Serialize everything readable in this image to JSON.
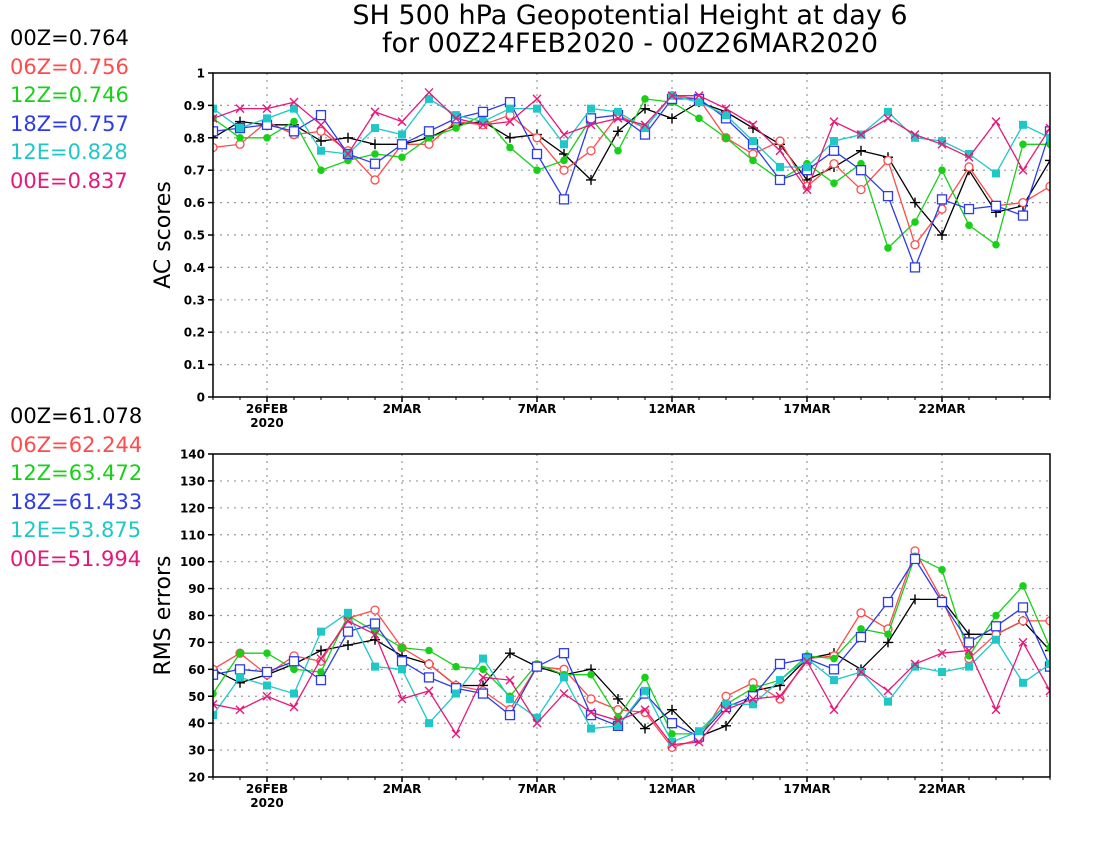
{
  "title": [
    "SH 500 hPa Geopotential Height at day 6",
    "for 00Z24FEB2020 - 00Z26MAR2020"
  ],
  "chart_data": [
    {
      "type": "line",
      "ylabel": "AC scores",
      "ylim": [
        0,
        1
      ],
      "yticks": [
        "0",
        "0.1",
        "0.2",
        "0.3",
        "0.4",
        "0.5",
        "0.6",
        "0.7",
        "0.8",
        "0.9",
        "1"
      ],
      "xlim": [
        24,
        55
      ],
      "xticks": [
        {
          "x": 26,
          "label": "26FEB",
          "sub": "2020"
        },
        {
          "x": 31,
          "label": "2MAR"
        },
        {
          "x": 36,
          "label": "7MAR"
        },
        {
          "x": 41,
          "label": "12MAR"
        },
        {
          "x": 46,
          "label": "17MAR"
        },
        {
          "x": 51,
          "label": "22MAR"
        }
      ],
      "grid": true,
      "legend": [
        {
          "label": "00Z=0.764",
          "color": "#000000"
        },
        {
          "label": "06Z=0.756",
          "color": "#ff4b4b"
        },
        {
          "label": "12Z=0.746",
          "color": "#18d018"
        },
        {
          "label": "18Z=0.757",
          "color": "#2e3ce6"
        },
        {
          "label": "12E=0.828",
          "color": "#1ec8c8"
        },
        {
          "label": "00E=0.837",
          "color": "#e6187a"
        }
      ],
      "series": [
        {
          "key": "00Z",
          "color": "#000000",
          "marker": "plus",
          "x": [
            24,
            25,
            26,
            27,
            28,
            29,
            30,
            31,
            32,
            33,
            34,
            35,
            36,
            37,
            38,
            39,
            40,
            41,
            42,
            43,
            44,
            45,
            46,
            47,
            48,
            49,
            50,
            51,
            52,
            53,
            54,
            55
          ],
          "values": [
            0.8,
            0.85,
            0.84,
            0.84,
            0.79,
            0.8,
            0.78,
            0.78,
            0.8,
            0.84,
            0.85,
            0.8,
            0.81,
            0.75,
            0.67,
            0.82,
            0.89,
            0.86,
            0.91,
            0.88,
            0.83,
            0.78,
            0.67,
            0.71,
            0.76,
            0.74,
            0.6,
            0.5,
            0.7,
            0.57,
            0.59,
            0.73
          ]
        },
        {
          "key": "06Z",
          "color": "#ff4b4b",
          "marker": "circle",
          "x": [
            24,
            25,
            26,
            27,
            28,
            29,
            30,
            31,
            32,
            33,
            34,
            35,
            36,
            37,
            38,
            39,
            40,
            41,
            42,
            43,
            44,
            45,
            46,
            47,
            48,
            49,
            50,
            51,
            52,
            53,
            54,
            55
          ],
          "values": [
            0.77,
            0.78,
            0.85,
            0.81,
            0.82,
            0.76,
            0.67,
            0.78,
            0.78,
            0.85,
            0.84,
            0.87,
            0.8,
            0.7,
            0.76,
            0.87,
            0.83,
            0.93,
            0.92,
            0.8,
            0.75,
            0.79,
            0.65,
            0.72,
            0.64,
            0.73,
            0.47,
            0.58,
            0.71,
            0.59,
            0.6,
            0.65
          ]
        },
        {
          "key": "12Z",
          "color": "#18d018",
          "marker": "dot",
          "x": [
            24,
            25,
            26,
            27,
            28,
            29,
            30,
            31,
            32,
            33,
            34,
            35,
            36,
            37,
            38,
            39,
            40,
            41,
            42,
            43,
            44,
            45,
            46,
            47,
            48,
            49,
            50,
            51,
            52,
            53,
            54,
            55
          ],
          "values": [
            0.86,
            0.8,
            0.8,
            0.85,
            0.7,
            0.73,
            0.75,
            0.74,
            0.8,
            0.83,
            0.87,
            0.77,
            0.7,
            0.73,
            0.86,
            0.76,
            0.92,
            0.91,
            0.86,
            0.8,
            0.73,
            0.67,
            0.72,
            0.66,
            0.72,
            0.46,
            0.54,
            0.7,
            0.53,
            0.47,
            0.78,
            0.78
          ]
        },
        {
          "key": "18Z",
          "color": "#2e3ce6",
          "marker": "square",
          "x": [
            24,
            25,
            26,
            27,
            28,
            29,
            30,
            31,
            32,
            33,
            34,
            35,
            36,
            37,
            38,
            39,
            40,
            41,
            42,
            43,
            44,
            45,
            46,
            47,
            48,
            49,
            50,
            51,
            52,
            53,
            54,
            55
          ],
          "values": [
            0.82,
            0.83,
            0.84,
            0.82,
            0.87,
            0.75,
            0.72,
            0.78,
            0.82,
            0.86,
            0.88,
            0.91,
            0.75,
            0.61,
            0.86,
            0.87,
            0.81,
            0.92,
            0.92,
            0.86,
            0.78,
            0.67,
            0.7,
            0.76,
            0.7,
            0.62,
            0.4,
            0.61,
            0.58,
            0.59,
            0.56,
            0.82
          ]
        },
        {
          "key": "12E",
          "color": "#1ec8c8",
          "marker": "filledsquare",
          "x": [
            24,
            25,
            26,
            27,
            28,
            29,
            30,
            31,
            32,
            33,
            34,
            35,
            36,
            37,
            38,
            39,
            40,
            41,
            42,
            43,
            44,
            45,
            46,
            47,
            48,
            49,
            50,
            51,
            52,
            53,
            54,
            55
          ],
          "values": [
            0.89,
            0.83,
            0.86,
            0.89,
            0.76,
            0.75,
            0.83,
            0.81,
            0.92,
            0.87,
            0.85,
            0.89,
            0.89,
            0.78,
            0.89,
            0.88,
            0.83,
            0.93,
            0.91,
            0.87,
            0.79,
            0.71,
            0.71,
            0.79,
            0.81,
            0.88,
            0.8,
            0.79,
            0.75,
            0.69,
            0.84,
            0.8
          ]
        },
        {
          "key": "00E",
          "color": "#e6187a",
          "marker": "cross",
          "x": [
            24,
            25,
            26,
            27,
            28,
            29,
            30,
            31,
            32,
            33,
            34,
            35,
            36,
            37,
            38,
            39,
            40,
            41,
            42,
            43,
            44,
            45,
            46,
            47,
            48,
            49,
            50,
            51,
            52,
            53,
            54,
            55
          ],
          "values": [
            0.86,
            0.89,
            0.89,
            0.91,
            0.84,
            0.75,
            0.88,
            0.85,
            0.94,
            0.86,
            0.84,
            0.85,
            0.92,
            0.81,
            0.84,
            0.86,
            0.84,
            0.93,
            0.93,
            0.89,
            0.84,
            0.76,
            0.64,
            0.85,
            0.81,
            0.86,
            0.81,
            0.78,
            0.74,
            0.85,
            0.7,
            0.83
          ]
        }
      ]
    },
    {
      "type": "line",
      "ylabel": "RMS errors",
      "ylim": [
        20,
        140
      ],
      "yticks": [
        "20",
        "30",
        "40",
        "50",
        "60",
        "70",
        "80",
        "90",
        "100",
        "110",
        "120",
        "130",
        "140"
      ],
      "xlim": [
        24,
        55
      ],
      "xticks": [
        {
          "x": 26,
          "label": "26FEB",
          "sub": "2020"
        },
        {
          "x": 31,
          "label": "2MAR"
        },
        {
          "x": 36,
          "label": "7MAR"
        },
        {
          "x": 41,
          "label": "12MAR"
        },
        {
          "x": 46,
          "label": "17MAR"
        },
        {
          "x": 51,
          "label": "22MAR"
        }
      ],
      "grid": true,
      "legend": [
        {
          "label": "00Z=61.078",
          "color": "#000000"
        },
        {
          "label": "06Z=62.244",
          "color": "#ff4b4b"
        },
        {
          "label": "12Z=63.472",
          "color": "#18d018"
        },
        {
          "label": "18Z=61.433",
          "color": "#2e3ce6"
        },
        {
          "label": "12E=53.875",
          "color": "#1ec8c8"
        },
        {
          "label": "00E=51.994",
          "color": "#e6187a"
        }
      ],
      "series": [
        {
          "key": "00Z",
          "color": "#000000",
          "marker": "plus",
          "x": [
            24,
            25,
            26,
            27,
            28,
            29,
            30,
            31,
            32,
            33,
            34,
            35,
            36,
            37,
            38,
            39,
            40,
            41,
            42,
            43,
            44,
            45,
            46,
            47,
            48,
            49,
            50,
            51,
            52,
            53,
            54,
            55
          ],
          "values": [
            60,
            55,
            58,
            62,
            67,
            69,
            71,
            65,
            62,
            54,
            54,
            66,
            61,
            58,
            60,
            49,
            38,
            45,
            35,
            39,
            52,
            54,
            64,
            66,
            60,
            70,
            86,
            86,
            73,
            73,
            78,
            67
          ]
        },
        {
          "key": "06Z",
          "color": "#ff4b4b",
          "marker": "circle",
          "x": [
            24,
            25,
            26,
            27,
            28,
            29,
            30,
            31,
            32,
            33,
            34,
            35,
            36,
            37,
            38,
            39,
            40,
            41,
            42,
            43,
            44,
            45,
            46,
            47,
            48,
            49,
            50,
            51,
            52,
            53,
            54,
            55
          ],
          "values": [
            60,
            66,
            58,
            65,
            63,
            79,
            82,
            68,
            62,
            54,
            52,
            45,
            61,
            60,
            49,
            45,
            44,
            31,
            34,
            50,
            55,
            49,
            64,
            65,
            81,
            75,
            104,
            86,
            64,
            73,
            78,
            78
          ]
        },
        {
          "key": "12Z",
          "color": "#18d018",
          "marker": "dot",
          "x": [
            24,
            25,
            26,
            27,
            28,
            29,
            30,
            31,
            32,
            33,
            34,
            35,
            36,
            37,
            38,
            39,
            40,
            41,
            42,
            43,
            44,
            45,
            46,
            47,
            48,
            49,
            50,
            51,
            52,
            53,
            54,
            55
          ],
          "values": [
            51,
            66,
            66,
            60,
            59,
            80,
            74,
            68,
            67,
            61,
            60,
            50,
            62,
            58,
            58,
            42,
            57,
            36,
            36,
            47,
            53,
            56,
            65,
            64,
            75,
            73,
            102,
            97,
            65,
            80,
            91,
            68
          ]
        },
        {
          "key": "18Z",
          "color": "#2e3ce6",
          "marker": "square",
          "x": [
            24,
            25,
            26,
            27,
            28,
            29,
            30,
            31,
            32,
            33,
            34,
            35,
            36,
            37,
            38,
            39,
            40,
            41,
            42,
            43,
            44,
            45,
            46,
            47,
            48,
            49,
            50,
            51,
            52,
            53,
            54,
            55
          ],
          "values": [
            58,
            60,
            59,
            63,
            56,
            74,
            77,
            63,
            57,
            53,
            51,
            43,
            61,
            66,
            43,
            39,
            51,
            40,
            35,
            46,
            50,
            62,
            64,
            60,
            72,
            85,
            101,
            85,
            70,
            76,
            83,
            61
          ]
        },
        {
          "key": "12E",
          "color": "#1ec8c8",
          "marker": "filledsquare",
          "x": [
            24,
            25,
            26,
            27,
            28,
            29,
            30,
            31,
            32,
            33,
            34,
            35,
            36,
            37,
            38,
            39,
            40,
            41,
            42,
            43,
            44,
            45,
            46,
            47,
            48,
            49,
            50,
            51,
            52,
            53,
            54,
            55
          ],
          "values": [
            43,
            57,
            54,
            51,
            74,
            81,
            61,
            60,
            40,
            51,
            64,
            49,
            42,
            57,
            38,
            39,
            52,
            33,
            37,
            47,
            47,
            56,
            64,
            56,
            59,
            48,
            61,
            59,
            61,
            71,
            55,
            62
          ]
        },
        {
          "key": "00E",
          "color": "#e6187a",
          "marker": "cross",
          "x": [
            24,
            25,
            26,
            27,
            28,
            29,
            30,
            31,
            32,
            33,
            34,
            35,
            36,
            37,
            38,
            39,
            40,
            41,
            42,
            43,
            44,
            45,
            46,
            47,
            48,
            49,
            50,
            51,
            52,
            53,
            54,
            55
          ],
          "values": [
            47,
            45,
            50,
            46,
            64,
            78,
            73,
            49,
            52,
            36,
            57,
            56,
            40,
            51,
            44,
            41,
            45,
            32,
            33,
            45,
            49,
            50,
            63,
            45,
            59,
            52,
            62,
            66,
            67,
            45,
            70,
            52
          ]
        }
      ]
    }
  ]
}
